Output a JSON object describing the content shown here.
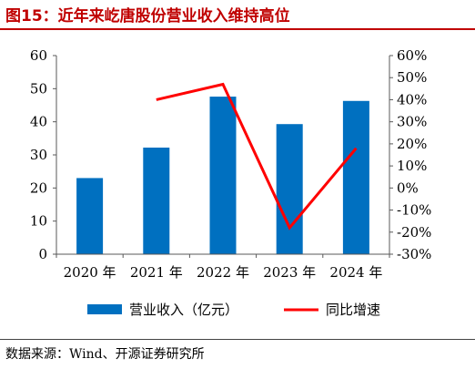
{
  "title": "图15：近年来屹唐股份营业收入维持高位",
  "source": "数据来源：Wind、开源证券研究所",
  "colors": {
    "bar": "#0070c0",
    "line": "#ff0000",
    "title": "#c00000"
  },
  "chart_data": {
    "type": "bar",
    "categories": [
      "2020 年",
      "2021 年",
      "2022 年",
      "2023 年",
      "2024 年"
    ],
    "series": [
      {
        "name": "营业收入（亿元）",
        "type": "bar",
        "axis": "left",
        "values": [
          23.0,
          32.2,
          47.6,
          39.3,
          46.3
        ]
      },
      {
        "name": "同比增速",
        "type": "line",
        "axis": "right",
        "values": [
          null,
          40,
          47,
          -18,
          18
        ]
      }
    ],
    "y_left": {
      "min": 0,
      "max": 60,
      "ticks": [
        0,
        10,
        20,
        30,
        40,
        50,
        60
      ]
    },
    "y_right": {
      "min": -30,
      "max": 60,
      "ticks": [
        "60%",
        "50%",
        "40%",
        "30%",
        "20%",
        "10%",
        "0%",
        "-10%",
        "-20%",
        "-30%"
      ]
    },
    "grid": false,
    "legend": "bottom"
  }
}
